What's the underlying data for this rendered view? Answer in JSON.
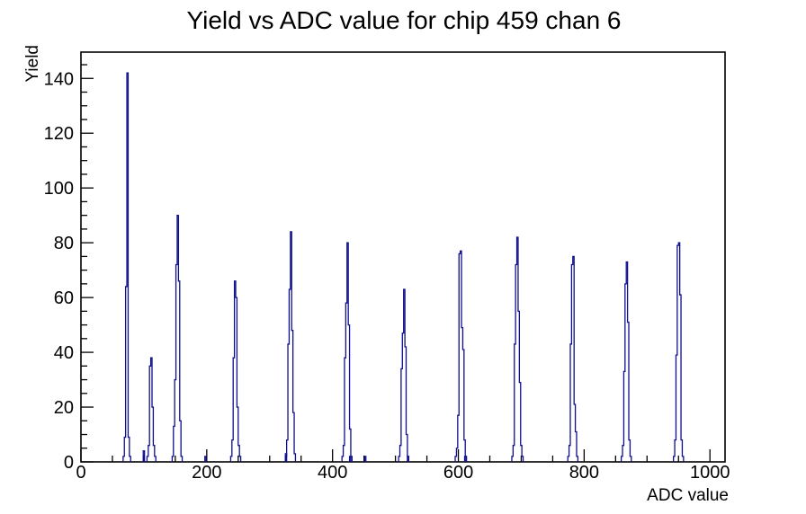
{
  "title": "Yield vs ADC value for chip 459 chan 6",
  "chart_data": {
    "type": "bar",
    "subtype": "histogram-spectrum",
    "title": "Yield vs ADC value for chip 459 chan 6",
    "xlabel": "ADC value",
    "ylabel": "Yield",
    "xlim": [
      0,
      1024
    ],
    "ylim": [
      0,
      149.6
    ],
    "x_major_ticks": [
      0,
      200,
      400,
      600,
      800,
      1000
    ],
    "x_minor_step": 50,
    "y_major_ticks": [
      0,
      20,
      40,
      60,
      80,
      100,
      120,
      140
    ],
    "y_minor_step": 5,
    "grid": false,
    "legend": false,
    "line_color": "#0e0e8e",
    "frame_color": "#000000",
    "bin_width_adc": 2,
    "peaks": [
      {
        "center": 74,
        "max": 142,
        "bins": [
          2,
          9,
          64,
          142,
          9,
          2
        ]
      },
      {
        "center": 112,
        "max": 38,
        "bins": [
          2,
          6,
          35,
          38,
          20,
          6,
          2
        ]
      },
      {
        "center": 154,
        "max": 90,
        "bins": [
          2,
          13,
          30,
          72,
          90,
          66,
          15,
          2
        ]
      },
      {
        "center": 245,
        "max": 66,
        "bins": [
          2,
          8,
          38,
          66,
          60,
          20,
          6,
          2
        ]
      },
      {
        "center": 334,
        "max": 84,
        "bins": [
          2,
          8,
          43,
          63,
          84,
          48,
          18,
          3
        ]
      },
      {
        "center": 424,
        "max": 80,
        "bins": [
          2,
          6,
          38,
          58,
          80,
          50,
          12,
          2
        ]
      },
      {
        "center": 514,
        "max": 63,
        "bins": [
          2,
          6,
          34,
          47,
          63,
          42,
          10,
          2
        ]
      },
      {
        "center": 604,
        "max": 77,
        "bins": [
          2,
          5,
          17,
          76,
          77,
          49,
          41,
          8,
          2
        ]
      },
      {
        "center": 694,
        "max": 82,
        "bins": [
          2,
          6,
          43,
          72,
          82,
          55,
          29,
          6,
          2
        ]
      },
      {
        "center": 783,
        "max": 75,
        "bins": [
          2,
          6,
          43,
          72,
          75,
          21,
          11,
          2
        ]
      },
      {
        "center": 868,
        "max": 73,
        "bins": [
          2,
          6,
          33,
          65,
          73,
          51,
          8,
          2
        ]
      },
      {
        "center": 951,
        "max": 80,
        "bins": [
          2,
          8,
          39,
          79,
          80,
          61,
          8,
          2
        ]
      }
    ],
    "stray_bins": [
      [
        100,
        4
      ],
      [
        198,
        2
      ],
      [
        326,
        3
      ],
      [
        428,
        2
      ],
      [
        452,
        2
      ],
      [
        520,
        2
      ],
      [
        611,
        2
      ]
    ]
  }
}
